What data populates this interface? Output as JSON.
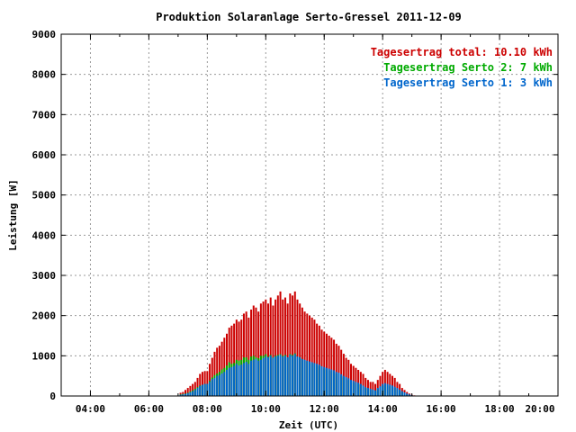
{
  "chart_data": {
    "type": "bar",
    "title": "Produktion Solaranlage Serto-Gressel 2011-12-09",
    "xlabel": "Zeit (UTC)",
    "ylabel": "Leistung [W]",
    "ylim": [
      0,
      9000
    ],
    "yticks": [
      "0",
      "1000",
      "2000",
      "3000",
      "4000",
      "5000",
      "6000",
      "7000",
      "8000",
      "9000"
    ],
    "xlim_hours": [
      3,
      20
    ],
    "xticks": [
      "04:00",
      "06:00",
      "08:00",
      "10:00",
      "12:00",
      "14:00",
      "16:00",
      "18:00",
      "20:00"
    ],
    "grid": true,
    "legend_placement": "top-right",
    "legend": [
      {
        "label": "Tagesertrag total: 10.10 kWh",
        "color": "#cc0000"
      },
      {
        "label": "Tagesertrag Serto 2: 7 kWh",
        "color": "#00aa00"
      },
      {
        "label": "Tagesertrag Serto 1: 3 kWh",
        "color": "#0066cc"
      }
    ],
    "colors": {
      "total": "#cc0000",
      "serto2": "#00aa00",
      "serto1": "#0066cc"
    },
    "x": [
      "07:05",
      "07:10",
      "07:15",
      "07:20",
      "07:25",
      "07:30",
      "07:35",
      "07:40",
      "07:45",
      "07:50",
      "07:55",
      "08:00",
      "08:05",
      "08:10",
      "08:15",
      "08:20",
      "08:25",
      "08:30",
      "08:35",
      "08:40",
      "08:45",
      "08:50",
      "08:55",
      "09:00",
      "09:05",
      "09:10",
      "09:15",
      "09:20",
      "09:25",
      "09:30",
      "09:35",
      "09:40",
      "09:45",
      "09:50",
      "09:55",
      "10:00",
      "10:05",
      "10:10",
      "10:15",
      "10:20",
      "10:25",
      "10:30",
      "10:35",
      "10:40",
      "10:45",
      "10:50",
      "10:55",
      "11:00",
      "11:05",
      "11:10",
      "11:15",
      "11:20",
      "11:25",
      "11:30",
      "11:35",
      "11:40",
      "11:45",
      "11:50",
      "11:55",
      "12:00",
      "12:05",
      "12:10",
      "12:15",
      "12:20",
      "12:25",
      "12:30",
      "12:35",
      "12:40",
      "12:45",
      "12:50",
      "12:55",
      "13:00",
      "13:05",
      "13:10",
      "13:15",
      "13:20",
      "13:25",
      "13:30",
      "13:35",
      "13:40",
      "13:45",
      "13:50",
      "13:55",
      "14:00",
      "14:05",
      "14:10",
      "14:15",
      "14:20",
      "14:25",
      "14:30",
      "14:35",
      "14:40",
      "14:45",
      "14:50",
      "14:55",
      "15:00",
      "15:05"
    ],
    "series": [
      {
        "name": "Serto 1",
        "values": [
          30,
          40,
          50,
          70,
          90,
          120,
          150,
          200,
          250,
          280,
          300,
          300,
          350,
          420,
          450,
          500,
          520,
          560,
          600,
          650,
          700,
          720,
          750,
          800,
          760,
          780,
          820,
          850,
          800,
          880,
          900,
          920,
          880,
          900,
          940,
          980,
          960,
          1000,
          950,
          980,
          1000,
          1020,
          980,
          1000,
          960,
          1020,
          1000,
          1040,
          980,
          960,
          920,
          900,
          880,
          860,
          840,
          820,
          800,
          780,
          740,
          720,
          700,
          680,
          660,
          640,
          600,
          580,
          540,
          500,
          470,
          440,
          400,
          380,
          350,
          330,
          300,
          260,
          220,
          200,
          180,
          160,
          140,
          200,
          240,
          300,
          320,
          300,
          280,
          260,
          230,
          200,
          160,
          120,
          90,
          60,
          40,
          20,
          10
        ]
      },
      {
        "name": "Serto 2",
        "values": [
          40,
          50,
          60,
          80,
          110,
          140,
          180,
          220,
          260,
          280,
          300,
          300,
          380,
          460,
          520,
          560,
          600,
          660,
          700,
          760,
          840,
          800,
          820,
          900,
          880,
          900,
          960,
          960,
          900,
          980,
          1000,
          960,
          940,
          1000,
          1000,
          1040,
          980,
          1020,
          960,
          1000,
          1020,
          1040,
          1000,
          1020,
          960,
          1040,
          1020,
          1060,
          980,
          960,
          920,
          880,
          860,
          840,
          820,
          800,
          760,
          740,
          700,
          680,
          660,
          640,
          620,
          600,
          560,
          540,
          500,
          460,
          430,
          400,
          360,
          340,
          320,
          300,
          280,
          240,
          200,
          180,
          160,
          140,
          120,
          180,
          220,
          260,
          280,
          260,
          240,
          220,
          200,
          160,
          140,
          100,
          70,
          40,
          20,
          10,
          5
        ]
      },
      {
        "name": "total",
        "values": [
          80,
          100,
          150,
          200,
          250,
          300,
          350,
          450,
          550,
          600,
          620,
          620,
          800,
          950,
          1100,
          1200,
          1250,
          1350,
          1450,
          1550,
          1700,
          1750,
          1800,
          1900,
          1850,
          1900,
          2050,
          2100,
          1950,
          2150,
          2250,
          2200,
          2100,
          2300,
          2350,
          2400,
          2300,
          2450,
          2250,
          2400,
          2500,
          2600,
          2400,
          2450,
          2300,
          2550,
          2500,
          2600,
          2400,
          2300,
          2200,
          2100,
          2050,
          2000,
          1950,
          1900,
          1800,
          1750,
          1650,
          1600,
          1550,
          1500,
          1450,
          1400,
          1300,
          1250,
          1150,
          1050,
          950,
          900,
          800,
          750,
          700,
          650,
          600,
          550,
          450,
          400,
          350,
          350,
          300,
          400,
          500,
          600,
          650,
          600,
          550,
          500,
          450,
          350,
          300,
          200,
          150,
          100,
          60,
          30,
          15
        ]
      }
    ]
  }
}
